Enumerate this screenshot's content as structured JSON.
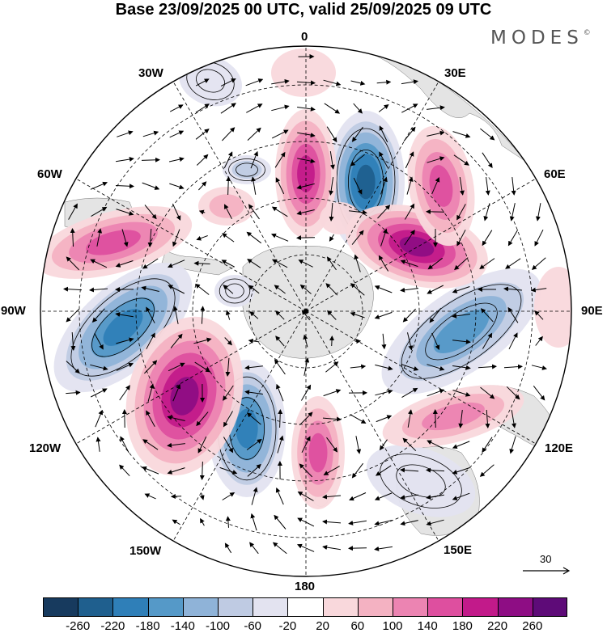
{
  "title": "Base 23/09/2025 00 UTC, valid 25/09/2025 09 UTC",
  "brand": {
    "name": "MODES",
    "mark": "©"
  },
  "longitude_labels": {
    "lon_0": "0",
    "lon_30e": "30E",
    "lon_60e": "60E",
    "lon_90e": "90E",
    "lon_120e": "120E",
    "lon_150e": "150E",
    "lon_180": "180",
    "lon_150w": "150W",
    "lon_120w": "120W",
    "lon_90w": "90W",
    "lon_60w": "60W",
    "lon_30w": "30W"
  },
  "reference_vector": {
    "value": "30"
  },
  "colorbar": {
    "colors": [
      "#173a5e",
      "#1f5f8e",
      "#2f7fb8",
      "#5599c8",
      "#8fb3d8",
      "#bfcbe3",
      "#e3e3f0",
      "#ffffff",
      "#f9d8dc",
      "#f4b2c2",
      "#ec84b2",
      "#de4f9f",
      "#c21a8a",
      "#8e0d84",
      "#5e0b78"
    ],
    "tick_labels": [
      "-260",
      "-220",
      "-180",
      "-140",
      "-100",
      "-60",
      "-20",
      "20",
      "60",
      "100",
      "140",
      "180",
      "220",
      "260"
    ]
  },
  "colors": {
    "land": "#e4e4e4",
    "positive_accent": "#c21a8a",
    "negative_accent": "#1f5f8e"
  }
}
